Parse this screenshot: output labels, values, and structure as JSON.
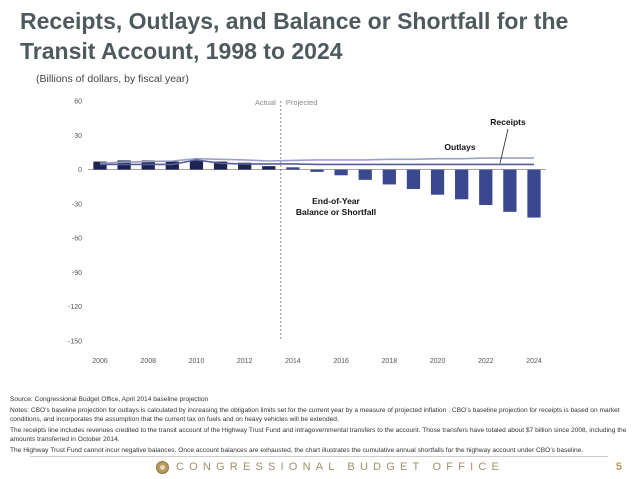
{
  "slide": {
    "title": "Receipts, Outlays, and Balance or Shortfall for the Transit Account, 1998 to 2024",
    "subtitle": "(Billions of dollars, by fiscal year)"
  },
  "chart_data": {
    "type": "bar",
    "title": "Receipts, Outlays, and Balance or Shortfall for the Transit Account, 1998 to 2024",
    "ylabel": "Billions of dollars, by fiscal year",
    "ylim": [
      -150,
      60
    ],
    "yticks": [
      60,
      30,
      0,
      -30,
      -60,
      -90,
      -120,
      -150
    ],
    "x": [
      2006,
      2007,
      2008,
      2009,
      2010,
      2011,
      2012,
      2013,
      2014,
      2015,
      2016,
      2017,
      2018,
      2019,
      2020,
      2021,
      2022,
      2023,
      2024
    ],
    "xtick_labels": [
      "2006",
      "2008",
      "2010",
      "2012",
      "2014",
      "2016",
      "2018",
      "2020",
      "2022",
      "2024"
    ],
    "phase_labels": {
      "actual": "Actual",
      "projected": "Projected"
    },
    "actual_through": 2013,
    "series": [
      {
        "name": "End-of-Year Balance or Shortfall",
        "kind": "bar",
        "values": [
          7,
          8,
          8,
          7,
          8,
          7,
          6,
          3,
          2,
          -2,
          -5,
          -9,
          -13,
          -17,
          -22,
          -26,
          -31,
          -37,
          -42
        ]
      },
      {
        "name": "Receipts",
        "kind": "line",
        "values": [
          4.5,
          4.5,
          4.5,
          4.5,
          8.5,
          5.5,
          5,
          5,
          5,
          4.5,
          4.5,
          4.5,
          4.5,
          4.5,
          4.5,
          4.5,
          4.5,
          4.5,
          4.5
        ]
      },
      {
        "name": "Outlays",
        "kind": "line",
        "values": [
          5.5,
          6.5,
          7,
          7.5,
          9.5,
          9,
          8.5,
          7.5,
          8,
          8.5,
          8.5,
          8.5,
          9,
          9,
          9.5,
          9.5,
          10,
          10,
          10
        ]
      }
    ],
    "annotations": [
      {
        "text": "Receipts"
      },
      {
        "text": "Outlays"
      },
      {
        "text": "End-of-Year",
        "text2": "Balance or Shortfall"
      }
    ],
    "colors": {
      "bar": "#3b4890",
      "balance_actual": "#1e2452",
      "receipts": "#555f99",
      "outlays": "#9aa0c4",
      "zero": "#999999"
    }
  },
  "notes": {
    "source": "Source: Congressional Budget Office, April 2014 baseline projection",
    "note1": "Notes: CBO’s baseline projection for outlays is calculated by increasing the obligation limits set for the current year by a measure of projected inflation . CBO’s baseline projection for receipts is based on market conditions, and incorporates the assumption that the current tax on fuels and on heavy vehicles will be extended.",
    "note2": "The receipts line includes revenues credited to the transit account of the Highway Trust Fund and intragovernmental transfers to the account. Those transfers have totaled about $7 billion since 2008, including the amounts transferred in October 2014.",
    "note3": "The Highway Trust Fund cannot incur negative balances. Once account balances are exhausted, the chart illustrates the cumulative annual shortfalls for the highway account under CBO’s baseline."
  },
  "footer": {
    "org": "CONGRESSIONAL BUDGET OFFICE",
    "page": "5"
  }
}
